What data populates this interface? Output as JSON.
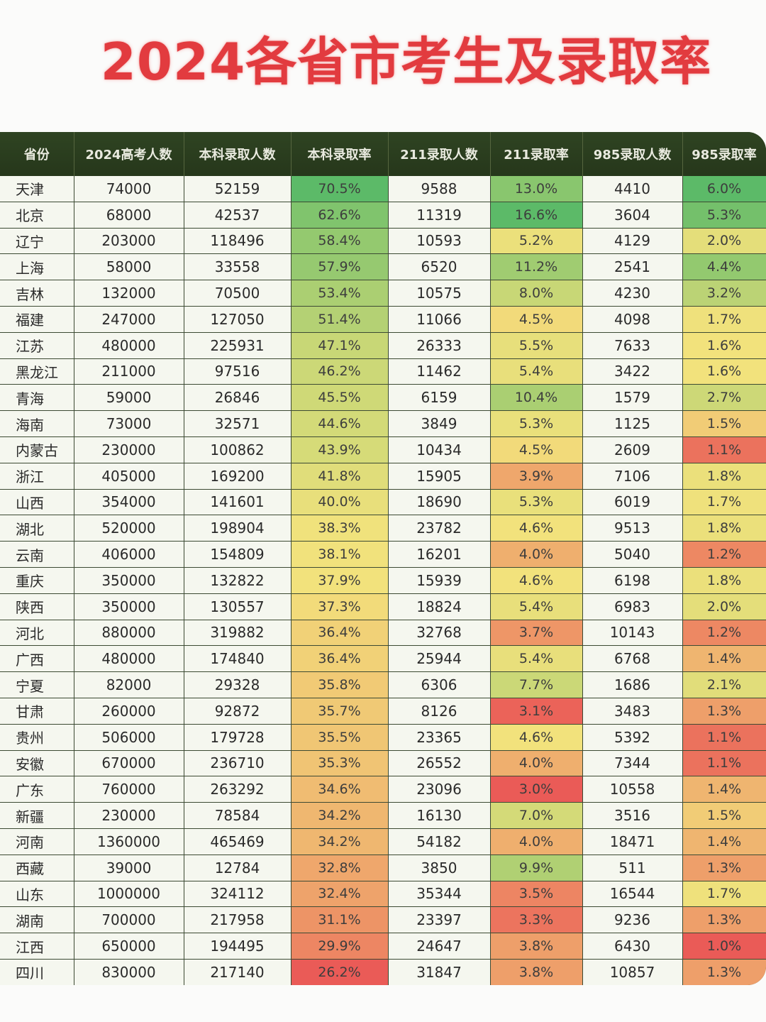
{
  "title": "2024各省市考生及录取率",
  "headers": [
    "省份",
    "2024高考人数",
    "本科录取人数",
    "本科录取率",
    "211录取人数",
    "211录取率",
    "985录取人数",
    "985录取率"
  ],
  "rows": [
    [
      "天津",
      "74000",
      "52159",
      "70.5%",
      "9588",
      "13.0%",
      "4410",
      "6.0%"
    ],
    [
      "北京",
      "68000",
      "42537",
      "62.6%",
      "11319",
      "16.6%",
      "3604",
      "5.3%"
    ],
    [
      "辽宁",
      "203000",
      "118496",
      "58.4%",
      "10593",
      "5.2%",
      "4129",
      "2.0%"
    ],
    [
      "上海",
      "58000",
      "33558",
      "57.9%",
      "6520",
      "11.2%",
      "2541",
      "4.4%"
    ],
    [
      "吉林",
      "132000",
      "70500",
      "53.4%",
      "10575",
      "8.0%",
      "4230",
      "3.2%"
    ],
    [
      "福建",
      "247000",
      "127050",
      "51.4%",
      "11066",
      "4.5%",
      "4098",
      "1.7%"
    ],
    [
      "江苏",
      "480000",
      "225931",
      "47.1%",
      "26333",
      "5.5%",
      "7633",
      "1.6%"
    ],
    [
      "黑龙江",
      "211000",
      "97516",
      "46.2%",
      "11462",
      "5.4%",
      "3422",
      "1.6%"
    ],
    [
      "青海",
      "59000",
      "26846",
      "45.5%",
      "6159",
      "10.4%",
      "1579",
      "2.7%"
    ],
    [
      "海南",
      "73000",
      "32571",
      "44.6%",
      "3849",
      "5.3%",
      "1125",
      "1.5%"
    ],
    [
      "内蒙古",
      "230000",
      "100862",
      "43.9%",
      "10434",
      "4.5%",
      "2609",
      "1.1%"
    ],
    [
      "浙江",
      "405000",
      "169200",
      "41.8%",
      "15905",
      "3.9%",
      "7106",
      "1.8%"
    ],
    [
      "山西",
      "354000",
      "141601",
      "40.0%",
      "18690",
      "5.3%",
      "6019",
      "1.7%"
    ],
    [
      "湖北",
      "520000",
      "198904",
      "38.3%",
      "23782",
      "4.6%",
      "9513",
      "1.8%"
    ],
    [
      "云南",
      "406000",
      "154809",
      "38.1%",
      "16201",
      "4.0%",
      "5040",
      "1.2%"
    ],
    [
      "重庆",
      "350000",
      "132822",
      "37.9%",
      "15939",
      "4.6%",
      "6198",
      "1.8%"
    ],
    [
      "陕西",
      "350000",
      "130557",
      "37.3%",
      "18824",
      "5.4%",
      "6983",
      "2.0%"
    ],
    [
      "河北",
      "880000",
      "319882",
      "36.4%",
      "32768",
      "3.7%",
      "10143",
      "1.2%"
    ],
    [
      "广西",
      "480000",
      "174840",
      "36.4%",
      "25944",
      "5.4%",
      "6768",
      "1.4%"
    ],
    [
      "宁夏",
      "82000",
      "29328",
      "35.8%",
      "6306",
      "7.7%",
      "1686",
      "2.1%"
    ],
    [
      "甘肃",
      "260000",
      "92872",
      "35.7%",
      "8126",
      "3.1%",
      "3483",
      "1.3%"
    ],
    [
      "贵州",
      "506000",
      "179728",
      "35.5%",
      "23365",
      "4.6%",
      "5392",
      "1.1%"
    ],
    [
      "安徽",
      "670000",
      "236710",
      "35.3%",
      "26552",
      "4.0%",
      "7344",
      "1.1%"
    ],
    [
      "广东",
      "760000",
      "263292",
      "34.6%",
      "23096",
      "3.0%",
      "10558",
      "1.4%"
    ],
    [
      "新疆",
      "230000",
      "78584",
      "34.2%",
      "16130",
      "7.0%",
      "3516",
      "1.5%"
    ],
    [
      "河南",
      "1360000",
      "465469",
      "34.2%",
      "54182",
      "4.0%",
      "18471",
      "1.4%"
    ],
    [
      "西藏",
      "39000",
      "12784",
      "32.8%",
      "3850",
      "9.9%",
      "511",
      "1.3%"
    ],
    [
      "山东",
      "1000000",
      "324112",
      "32.4%",
      "35344",
      "3.5%",
      "16544",
      "1.7%"
    ],
    [
      "湖南",
      "700000",
      "217958",
      "31.1%",
      "23397",
      "3.3%",
      "9236",
      "1.3%"
    ],
    [
      "江西",
      "650000",
      "194495",
      "29.9%",
      "24647",
      "3.8%",
      "6430",
      "1.0%"
    ],
    [
      "四川",
      "830000",
      "217140",
      "26.2%",
      "31847",
      "3.8%",
      "10857",
      "1.3%"
    ]
  ],
  "heatmap_colors": {
    "low": "#ea5b57",
    "mid": "#f2e27c",
    "high": "#5cba68"
  }
}
